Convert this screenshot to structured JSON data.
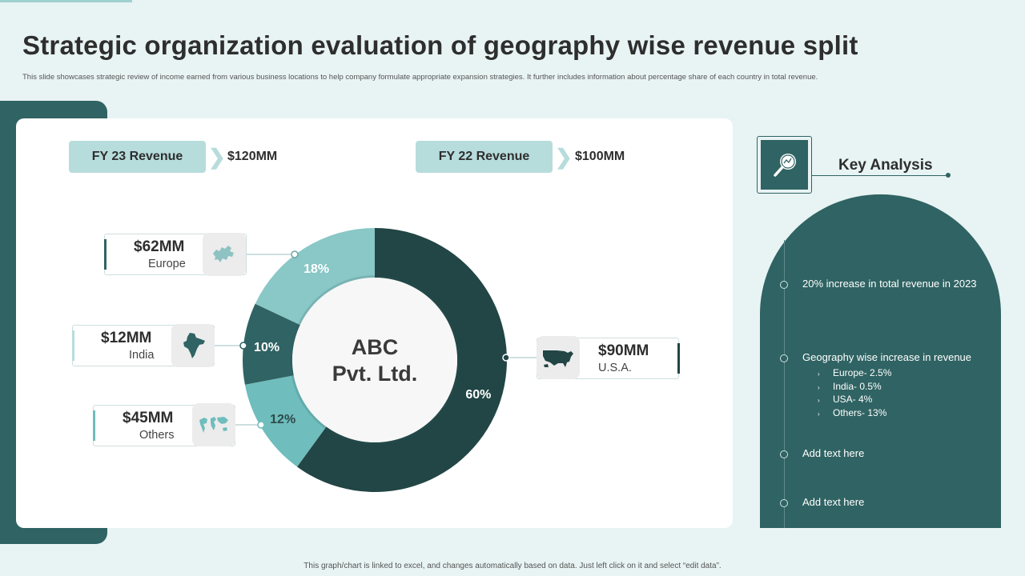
{
  "header": {
    "title": "Strategic organization evaluation of geography wise revenue split",
    "subtitle": "This slide showcases strategic review of income earned from various business locations to help company formulate appropriate expansion strategies. It further includes information about percentage share of each country in total revenue."
  },
  "revenue": {
    "fy23_label": "FY 23 Revenue",
    "fy23_value": "$120MM",
    "fy22_label": "FY 22 Revenue",
    "fy22_value": "$100MM"
  },
  "callouts": {
    "europe": {
      "amount": "$62MM",
      "label": "Europe",
      "icon": "europe-map-icon"
    },
    "india": {
      "amount": "$12MM",
      "label": "India",
      "icon": "india-map-icon"
    },
    "others": {
      "amount": "$45MM",
      "label": "Others",
      "icon": "world-map-icon"
    },
    "usa": {
      "amount": "$90MM",
      "label": "U.S.A.",
      "icon": "usa-map-icon"
    }
  },
  "chart_data": {
    "type": "donut",
    "center_label_line1": "ABC",
    "center_label_line2": "Pvt. Ltd.",
    "slices": [
      {
        "label": "U.S.A.",
        "value": 60,
        "display": "60%",
        "color": "#224545"
      },
      {
        "label": "Others",
        "value": 12,
        "display": "12%",
        "color": "#6fbdbd"
      },
      {
        "label": "India",
        "value": 10,
        "display": "10%",
        "color": "#306363"
      },
      {
        "label": "Europe",
        "value": 18,
        "display": "18%",
        "color": "#8ac7c7"
      }
    ]
  },
  "key_analysis": {
    "title": "Key Analysis",
    "icon": "magnifier-chart-icon",
    "items": [
      {
        "text": "20% increase in total revenue  in 2023"
      },
      {
        "text": "Geography  wise increase in revenue",
        "sub": [
          "Europe- 2.5%",
          "India- 0.5%",
          "USA- 4%",
          "Others- 13%"
        ]
      },
      {
        "text": "Add text here"
      },
      {
        "text": "Add text here"
      }
    ]
  },
  "footer": {
    "note": "This graph/chart is linked to excel, and changes automatically based on data. Just left click on it and select “edit data”."
  },
  "colors": {
    "dark_teal": "#306363",
    "darkest_teal": "#224545",
    "light_teal": "#b7dcdc",
    "background": "#e8f3f3"
  }
}
